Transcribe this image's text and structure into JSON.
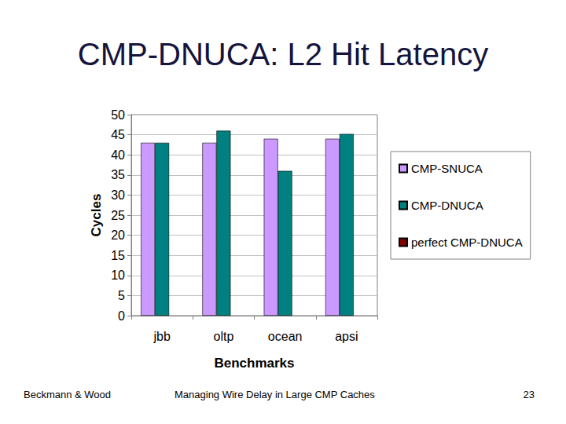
{
  "chart_data": {
    "type": "bar",
    "title": "CMP-DNUCA: L2 Hit Latency",
    "x_label": "Benchmarks",
    "y_label": "Cycles",
    "categories": [
      "jbb",
      "oltp",
      "ocean",
      "apsi"
    ],
    "series": [
      {
        "name": "CMP-SNUCA",
        "color": "#cc99ff",
        "values": [
          43,
          43,
          44,
          44
        ]
      },
      {
        "name": "CMP-DNUCA",
        "color": "#008080",
        "values": [
          43,
          46,
          36,
          45.2
        ]
      },
      {
        "name": "perfect CMP-DNUCA",
        "color": "#800000",
        "values": [
          null,
          null,
          null,
          null
        ]
      }
    ],
    "ylim": [
      0,
      50
    ],
    "yticks": [
      0,
      5,
      10,
      15,
      20,
      25,
      30,
      35,
      40,
      45,
      50
    ],
    "grid": true,
    "legend": "right"
  },
  "footer": {
    "left": "Beckmann & Wood",
    "center": "Managing Wire Delay in Large CMP Caches",
    "page": "23"
  }
}
